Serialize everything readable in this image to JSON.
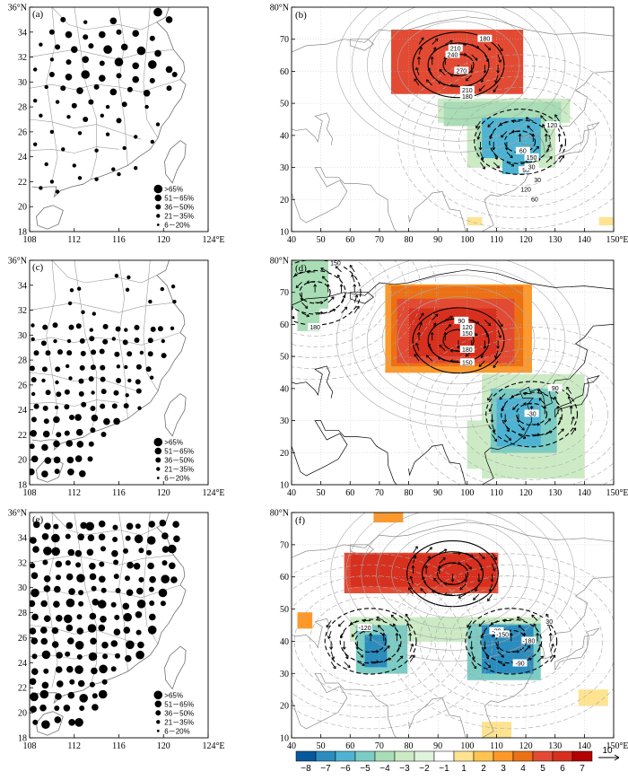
{
  "colors": {
    "frame": "#000000",
    "border": "#9a9a9a",
    "grid": "#bbbbbb",
    "contour": "#a8a8a8",
    "wind": "#000000",
    "red_dark": "#d7301f",
    "red": "#ef3b2c",
    "orange": "#f16913",
    "orange_light": "#fd8d3c",
    "yellow": "#fdd96a",
    "blue_dark": "#0868ac",
    "blue": "#2b8cbe",
    "blue_mid": "#4eb3d3",
    "blue_light": "#7bccc4",
    "blue_pale": "#a8ddb5"
  },
  "chart_data": [
    {
      "id": "a",
      "type": "scatter",
      "panel_label": "(a)",
      "xticks": [
        "108",
        "112",
        "116",
        "120",
        "124°E"
      ],
      "yticks": [
        "18",
        "20",
        "22",
        "24",
        "26",
        "28",
        "30",
        "32",
        "34",
        "36°N"
      ],
      "xlim": [
        108,
        124
      ],
      "ylim": [
        18,
        36
      ],
      "legend": [
        ">65%",
        "51－65%",
        "36－50%",
        "21－35%",
        "6－20%"
      ],
      "legend_size_index": [
        4,
        3,
        2,
        1,
        0
      ],
      "points": [
        [
          111.0,
          35.0,
          2
        ],
        [
          113.0,
          34.8,
          1
        ],
        [
          115.5,
          34.9,
          3
        ],
        [
          119.5,
          35.6,
          4
        ],
        [
          120.5,
          35.0,
          3
        ],
        [
          110.0,
          34.0,
          2
        ],
        [
          111.5,
          33.8,
          3
        ],
        [
          113.0,
          33.6,
          2
        ],
        [
          114.5,
          33.8,
          3
        ],
        [
          116.0,
          34.0,
          2
        ],
        [
          117.5,
          33.9,
          3
        ],
        [
          119.0,
          33.5,
          2
        ],
        [
          109.0,
          33.0,
          1
        ],
        [
          110.5,
          32.8,
          2
        ],
        [
          112.0,
          32.6,
          3
        ],
        [
          113.5,
          32.9,
          2
        ],
        [
          115.0,
          32.6,
          4
        ],
        [
          116.5,
          32.8,
          3
        ],
        [
          118.0,
          32.5,
          4
        ],
        [
          119.5,
          32.3,
          3
        ],
        [
          110.0,
          31.8,
          1
        ],
        [
          111.5,
          31.6,
          2
        ],
        [
          113.0,
          31.8,
          3
        ],
        [
          114.5,
          31.5,
          2
        ],
        [
          116.0,
          31.6,
          4
        ],
        [
          117.5,
          31.3,
          3
        ],
        [
          119.0,
          31.4,
          4
        ],
        [
          120.5,
          31.0,
          3
        ],
        [
          108.5,
          31.0,
          1
        ],
        [
          110.0,
          30.6,
          2
        ],
        [
          111.5,
          30.4,
          3
        ],
        [
          113.0,
          30.6,
          4
        ],
        [
          114.5,
          30.3,
          3
        ],
        [
          116.0,
          30.5,
          2
        ],
        [
          117.5,
          30.2,
          3
        ],
        [
          119.0,
          30.1,
          2
        ],
        [
          121.0,
          30.6,
          2
        ],
        [
          109.5,
          29.6,
          1
        ],
        [
          111.0,
          29.5,
          2
        ],
        [
          112.5,
          29.3,
          3
        ],
        [
          114.0,
          29.6,
          2
        ],
        [
          115.5,
          29.2,
          3
        ],
        [
          117.0,
          29.4,
          2
        ],
        [
          118.5,
          29.1,
          3
        ],
        [
          120.5,
          29.5,
          2
        ],
        [
          108.5,
          28.5,
          1
        ],
        [
          110.5,
          28.4,
          1
        ],
        [
          112.0,
          28.1,
          2
        ],
        [
          113.5,
          28.4,
          2
        ],
        [
          115.0,
          28.0,
          1
        ],
        [
          116.5,
          28.2,
          2
        ],
        [
          118.5,
          28.0,
          1
        ],
        [
          109.0,
          27.3,
          1
        ],
        [
          111.5,
          27.2,
          1
        ],
        [
          113.0,
          27.0,
          2
        ],
        [
          114.5,
          27.3,
          1
        ],
        [
          116.0,
          26.9,
          2
        ],
        [
          119.5,
          26.6,
          1
        ],
        [
          110.0,
          26.0,
          1
        ],
        [
          112.5,
          25.9,
          1
        ],
        [
          115.0,
          25.8,
          1
        ],
        [
          117.5,
          25.6,
          1
        ],
        [
          119.0,
          25.2,
          1
        ],
        [
          108.5,
          25.0,
          1
        ],
        [
          111.0,
          24.6,
          1
        ],
        [
          114.0,
          24.5,
          1
        ],
        [
          116.5,
          24.7,
          1
        ],
        [
          109.5,
          23.4,
          1
        ],
        [
          112.0,
          23.3,
          1
        ],
        [
          115.5,
          23.0,
          1
        ],
        [
          117.5,
          23.1,
          1
        ],
        [
          110.0,
          22.0,
          1
        ],
        [
          112.5,
          22.3,
          1
        ],
        [
          114.0,
          22.2,
          1
        ],
        [
          116.0,
          22.6,
          1
        ],
        [
          109.0,
          21.5,
          1
        ],
        [
          110.5,
          21.2,
          1
        ]
      ]
    },
    {
      "id": "b",
      "type": "heatmap",
      "panel_label": "(b)",
      "xticks": [
        "40",
        "50",
        "60",
        "70",
        "80",
        "90",
        "100",
        "110",
        "120",
        "130",
        "140",
        "150°E"
      ],
      "yticks": [
        "10",
        "20",
        "30",
        "40",
        "50",
        "60",
        "70",
        "80°N"
      ],
      "xlim": [
        40,
        150
      ],
      "ylim": [
        10,
        80
      ],
      "regions": [
        {
          "cls": 7,
          "cells": [
            [
              80,
              62,
              110,
              70
            ],
            [
              85,
              58,
              105,
              62
            ]
          ]
        },
        {
          "cls": 6,
          "cells": [
            [
              76,
              55,
              116,
              72
            ]
          ]
        },
        {
          "cls": 5,
          "cells": [
            [
              74,
              53,
              118,
              73
            ]
          ]
        },
        {
          "cls": -1,
          "cells": [
            [
              90,
              44,
              135,
              51
            ],
            [
              100,
              30,
              130,
              44
            ]
          ]
        },
        {
          "cls": -2,
          "cells": [
            [
              92,
              43,
              132,
              50
            ],
            [
              103,
              33,
              128,
              44
            ]
          ]
        },
        {
          "cls": -4,
          "cells": [
            [
              105,
              33,
              125,
              44
            ],
            [
              112,
              28,
              122,
              36
            ]
          ]
        },
        {
          "cls": 1,
          "cells": [
            [
              100,
              12,
              105,
              14
            ],
            [
              145,
              12,
              148,
              14
            ]
          ]
        }
      ],
      "contour_labels": [
        "180",
        "210",
        "240",
        "270",
        "210",
        "180",
        "120",
        "150",
        "90",
        "120",
        "60",
        "30",
        "30",
        "60"
      ],
      "contour_label_pos": [
        [
          106,
          70
        ],
        [
          96,
          67
        ],
        [
          95,
          65
        ],
        [
          98,
          60
        ],
        [
          100,
          54
        ],
        [
          100,
          52
        ],
        [
          129,
          43
        ],
        [
          122,
          33
        ],
        [
          120,
          29
        ],
        [
          120,
          23
        ],
        [
          119,
          35
        ],
        [
          122,
          30
        ],
        [
          124,
          26
        ],
        [
          123,
          20
        ]
      ]
    },
    {
      "id": "c",
      "type": "scatter",
      "panel_label": "(c)",
      "xticks": [
        "108",
        "112",
        "116",
        "120",
        "124°E"
      ],
      "yticks": [
        "18",
        "20",
        "22",
        "24",
        "26",
        "28",
        "30",
        "32",
        "34",
        "36°N"
      ],
      "xlim": [
        108,
        124
      ],
      "ylim": [
        18,
        36
      ],
      "legend": [
        ">65%",
        "51－65%",
        "36－50%",
        "21－35%",
        "6－20%"
      ],
      "legend_size_index": [
        4,
        3,
        2,
        1,
        0
      ],
      "points": []
    },
    {
      "id": "d",
      "type": "heatmap",
      "panel_label": "(d)",
      "xticks": [
        "40",
        "50",
        "60",
        "70",
        "80",
        "90",
        "100",
        "110",
        "120",
        "130",
        "140",
        "150°E"
      ],
      "yticks": [
        "10",
        "20",
        "30",
        "40",
        "50",
        "60",
        "70",
        "80°N"
      ],
      "xlim": [
        40,
        150
      ],
      "ylim": [
        10,
        80
      ],
      "regions": [
        {
          "cls": -2,
          "cells": [
            [
              40,
              65,
              52,
              78
            ],
            [
              42,
              58,
              48,
              66
            ]
          ]
        },
        {
          "cls": 3,
          "cells": [
            [
              72,
              45,
              120,
              72
            ]
          ]
        },
        {
          "cls": 4,
          "cells": [
            [
              74,
              47,
              118,
              70
            ]
          ]
        },
        {
          "cls": 5,
          "cells": [
            [
              76,
              48,
              115,
              68
            ]
          ]
        },
        {
          "cls": 6,
          "cells": [
            [
              80,
              50,
              110,
              64
            ]
          ]
        },
        {
          "cls": -1,
          "cells": [
            [
              105,
              12,
              140,
              44
            ],
            [
              100,
              15,
              110,
              30
            ]
          ]
        },
        {
          "cls": -3,
          "cells": [
            [
              108,
              20,
              130,
              40
            ]
          ]
        },
        {
          "cls": -5,
          "cells": [
            [
              110,
              22,
              125,
              35
            ]
          ]
        }
      ],
      "contour_labels": [
        "150",
        "180",
        "90",
        "120",
        "150",
        "180",
        "150",
        "90",
        "-30"
      ],
      "contour_label_pos": [
        [
          55,
          79
        ],
        [
          48,
          59
        ],
        [
          98,
          61
        ],
        [
          100,
          59
        ],
        [
          100,
          57
        ],
        [
          100,
          52
        ],
        [
          100,
          48
        ],
        [
          130,
          40
        ],
        [
          122,
          32
        ]
      ]
    },
    {
      "id": "e",
      "type": "scatter",
      "panel_label": "(e)",
      "xticks": [
        "108",
        "112",
        "116",
        "120",
        "124°E"
      ],
      "yticks": [
        "18",
        "20",
        "22",
        "24",
        "26",
        "28",
        "30",
        "32",
        "34",
        "36°N"
      ],
      "xlim": [
        108,
        124
      ],
      "ylim": [
        18,
        36
      ],
      "legend": [
        ">65%",
        "51－65%",
        "36－50%",
        "21－35%",
        "6－20%"
      ],
      "legend_size_index": [
        4,
        3,
        2,
        1,
        0
      ],
      "points": []
    },
    {
      "id": "f",
      "type": "heatmap",
      "panel_label": "(f)",
      "xticks": [
        "40",
        "50",
        "60",
        "70",
        "80",
        "90",
        "100",
        "110",
        "120",
        "130",
        "140",
        "150°E"
      ],
      "yticks": [
        "10",
        "20",
        "30",
        "40",
        "50",
        "60",
        "70",
        "80°N"
      ],
      "xlim": [
        40,
        150
      ],
      "ylim": [
        10,
        80
      ],
      "regions": [
        {
          "cls": 3,
          "cells": [
            [
              68,
              77,
              78,
              80
            ],
            [
              42,
              44,
              45,
              47
            ],
            [
              140,
              22,
              145,
              24
            ]
          ]
        },
        {
          "cls": 5,
          "cells": [
            [
              58,
              55,
              110,
              66
            ]
          ]
        },
        {
          "cls": 6,
          "cells": [
            [
              60,
              57,
              108,
              65
            ]
          ]
        },
        {
          "cls": 1,
          "cells": [
            [
              105,
              10,
              115,
              14
            ],
            [
              138,
              20,
              146,
              24
            ]
          ]
        },
        {
          "cls": -1,
          "cells": [
            [
              60,
              40,
              125,
              47
            ]
          ]
        },
        {
          "cls": -3,
          "cells": [
            [
              62,
              30,
              78,
              45
            ],
            [
              100,
              28,
              125,
              45
            ]
          ]
        },
        {
          "cls": -6,
          "cells": [
            [
              105,
              30,
              122,
              44
            ],
            [
              65,
              32,
              72,
              40
            ]
          ]
        }
      ],
      "contour_labels": [
        "-120",
        "-180",
        "-30",
        "-90",
        "-150",
        "30"
      ],
      "contour_label_pos": [
        [
          65,
          44
        ],
        [
          121,
          40
        ],
        [
          110,
          43
        ],
        [
          118,
          33
        ],
        [
          112,
          42
        ],
        [
          128,
          46
        ]
      ]
    }
  ],
  "colorbar": {
    "labels": [
      "−8",
      "−7",
      "−6",
      "−5",
      "−4",
      "−3",
      "−2",
      "−1",
      "1",
      "2",
      "3",
      "4",
      "5",
      "6",
      "7"
    ],
    "colors": [
      "#08589e",
      "#2b8cbe",
      "#4eb3d3",
      "#7bccc4",
      "#a8ddb5",
      "#ccebc5",
      "#e0f3db",
      "#ffffff",
      "#fee391",
      "#fec44f",
      "#fe9929",
      "#ec7014",
      "#e34a33",
      "#d7301f",
      "#b30000"
    ],
    "arrow_label": "10"
  }
}
